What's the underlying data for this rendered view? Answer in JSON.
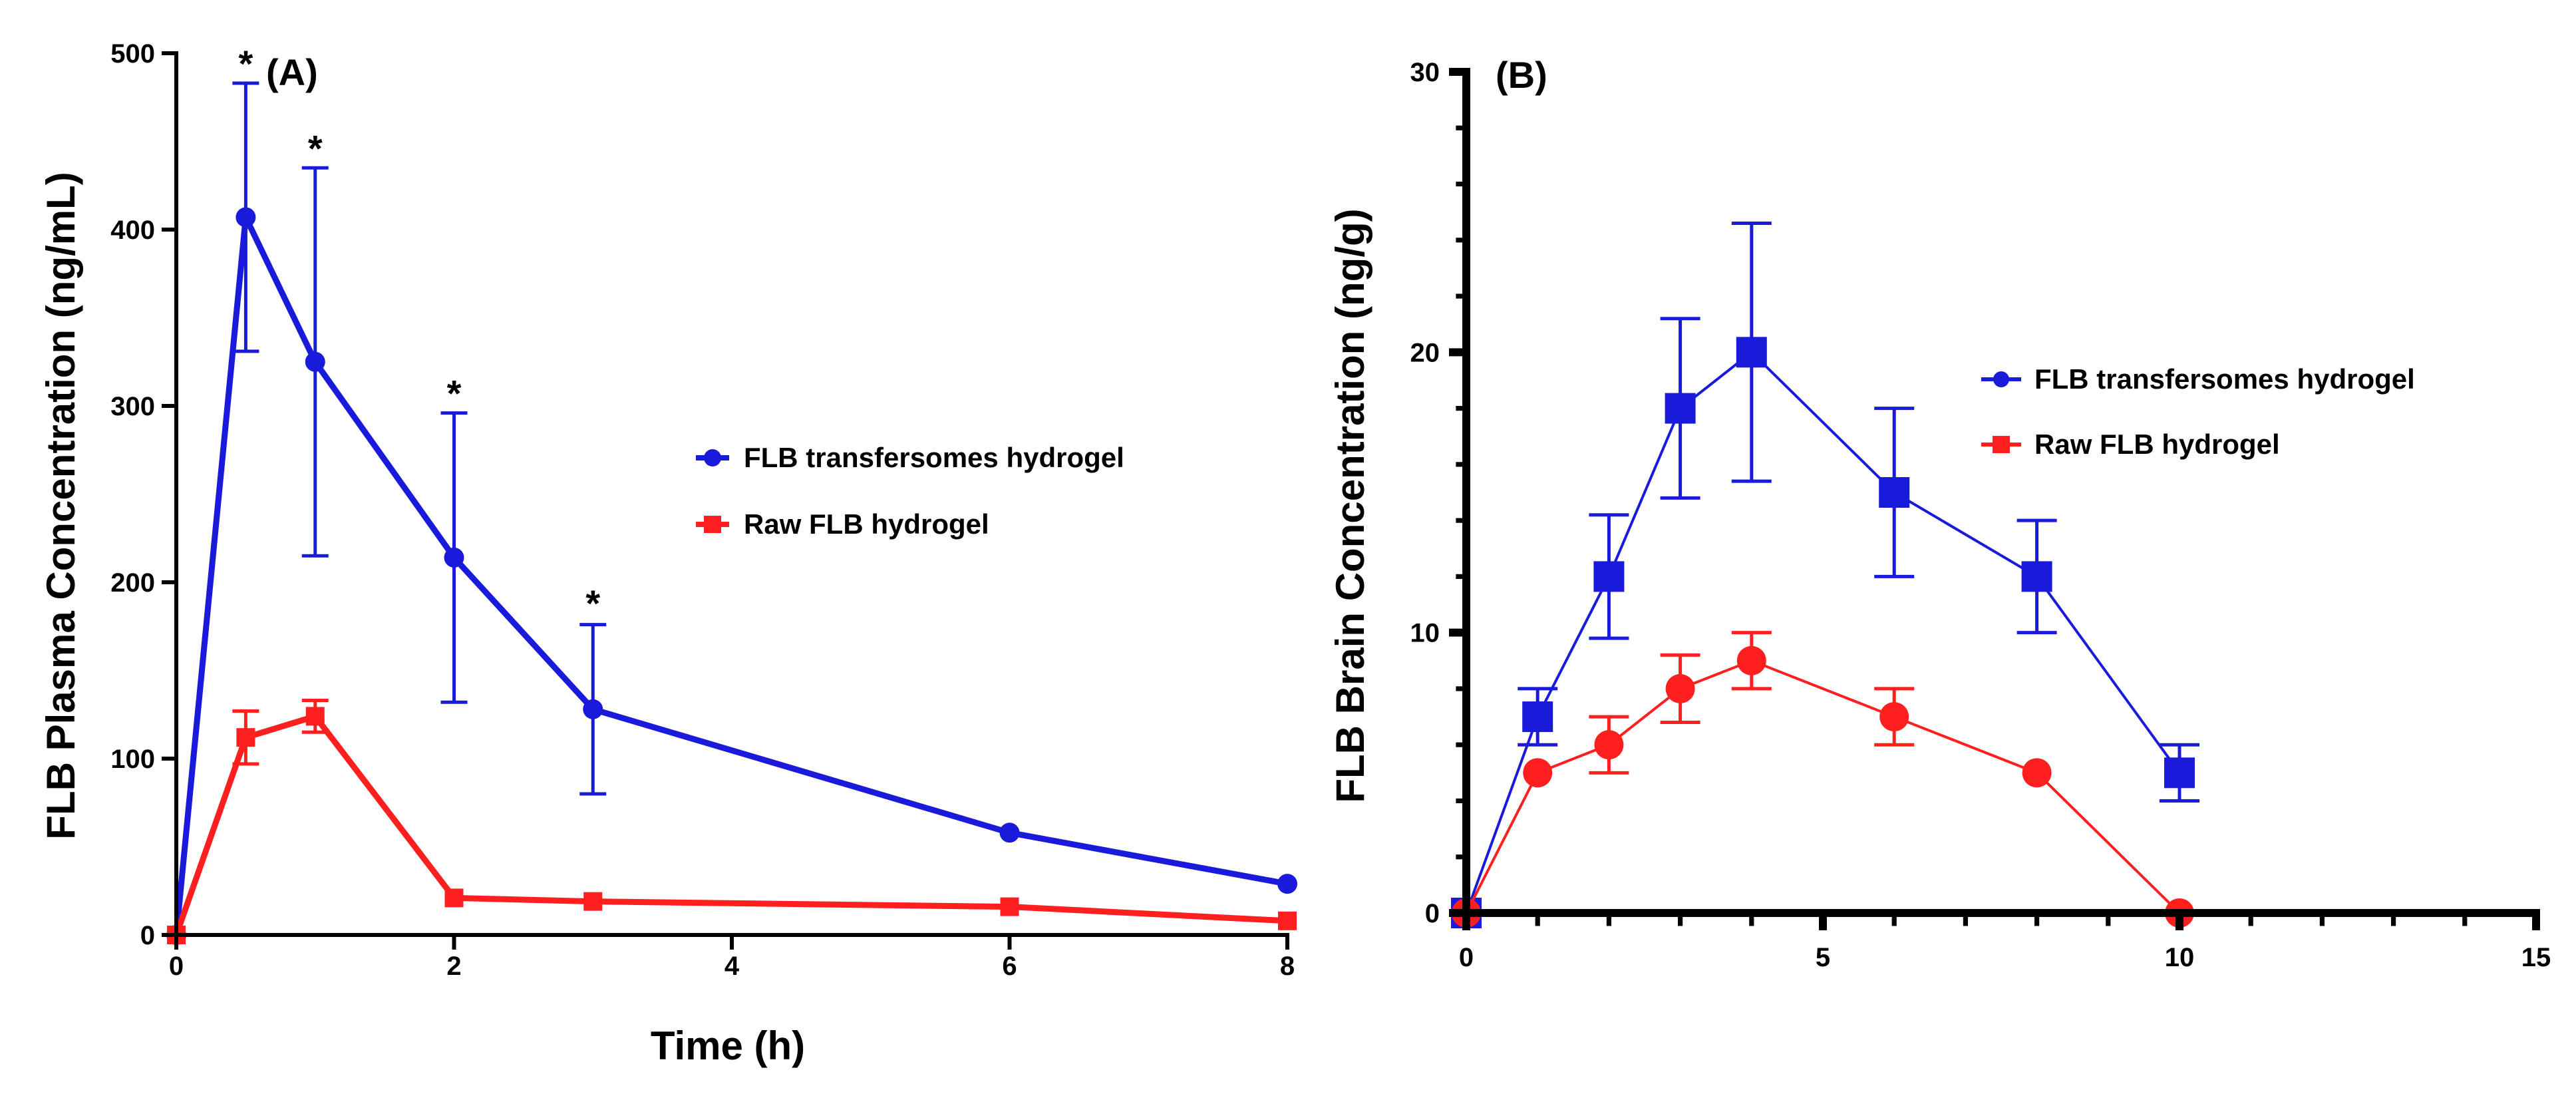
{
  "chart_data": [
    {
      "type": "line",
      "panel_label": "(A)",
      "xlabel": "Time (h)",
      "ylabel": "FLB Plasma Concentration (ng/mL)",
      "xlim": [
        0,
        8
      ],
      "ylim": [
        0,
        500
      ],
      "xticks": [
        "0",
        "2",
        "4",
        "6",
        "8"
      ],
      "yticks": [
        "0",
        "100",
        "200",
        "300",
        "400",
        "500"
      ],
      "legend_position": "center-right",
      "series": [
        {
          "name": "FLB transfersomes hydrogel",
          "color": "#1a1adb",
          "marker": "circle",
          "x": [
            0,
            0.5,
            1,
            2,
            3,
            6,
            8
          ],
          "y": [
            0,
            407,
            325,
            214,
            128,
            58,
            29
          ],
          "error": [
            0,
            76,
            110,
            82,
            48,
            0,
            0
          ]
        },
        {
          "name": "Raw FLB hydrogel",
          "color": "#ff1f1f",
          "marker": "square",
          "x": [
            0,
            0.5,
            1,
            2,
            3,
            6,
            8
          ],
          "y": [
            0,
            112,
            124,
            21,
            19,
            16,
            8
          ],
          "error": [
            0,
            15,
            9,
            0,
            0,
            0,
            0
          ]
        }
      ],
      "annotations": [
        {
          "text": "*",
          "x": 0.5,
          "y": 483
        },
        {
          "text": "*",
          "x": 1,
          "y": 435
        },
        {
          "text": "*",
          "x": 2,
          "y": 296
        },
        {
          "text": "*",
          "x": 3,
          "y": 177
        }
      ]
    },
    {
      "type": "line",
      "panel_label": "(B)",
      "xlabel": "",
      "ylabel": "FLB Brain Concentration (ng/g)",
      "xlim": [
        0,
        15
      ],
      "ylim": [
        0,
        30
      ],
      "xticks": [
        "0",
        "5",
        "10",
        "15"
      ],
      "yticks": [
        "0",
        "10",
        "20",
        "30"
      ],
      "legend_position": "center-right",
      "series": [
        {
          "name": "FLB transfersomes hydrogel",
          "color": "#1a1adb",
          "marker": "square",
          "x": [
            0,
            1,
            2,
            3,
            4,
            6,
            8,
            10
          ],
          "y": [
            0,
            7,
            12,
            18,
            20,
            15,
            12,
            5
          ],
          "error": [
            0,
            1,
            2.2,
            3.2,
            4.6,
            3,
            2,
            1
          ]
        },
        {
          "name": "Raw FLB hydrogel",
          "color": "#ff1f1f",
          "marker": "circle",
          "x": [
            0,
            1,
            2,
            3,
            4,
            6,
            8,
            10
          ],
          "y": [
            0,
            5,
            6,
            8,
            9,
            7,
            5,
            0
          ],
          "error": [
            0,
            0,
            1,
            1.2,
            1,
            1,
            0,
            0
          ]
        }
      ]
    }
  ]
}
